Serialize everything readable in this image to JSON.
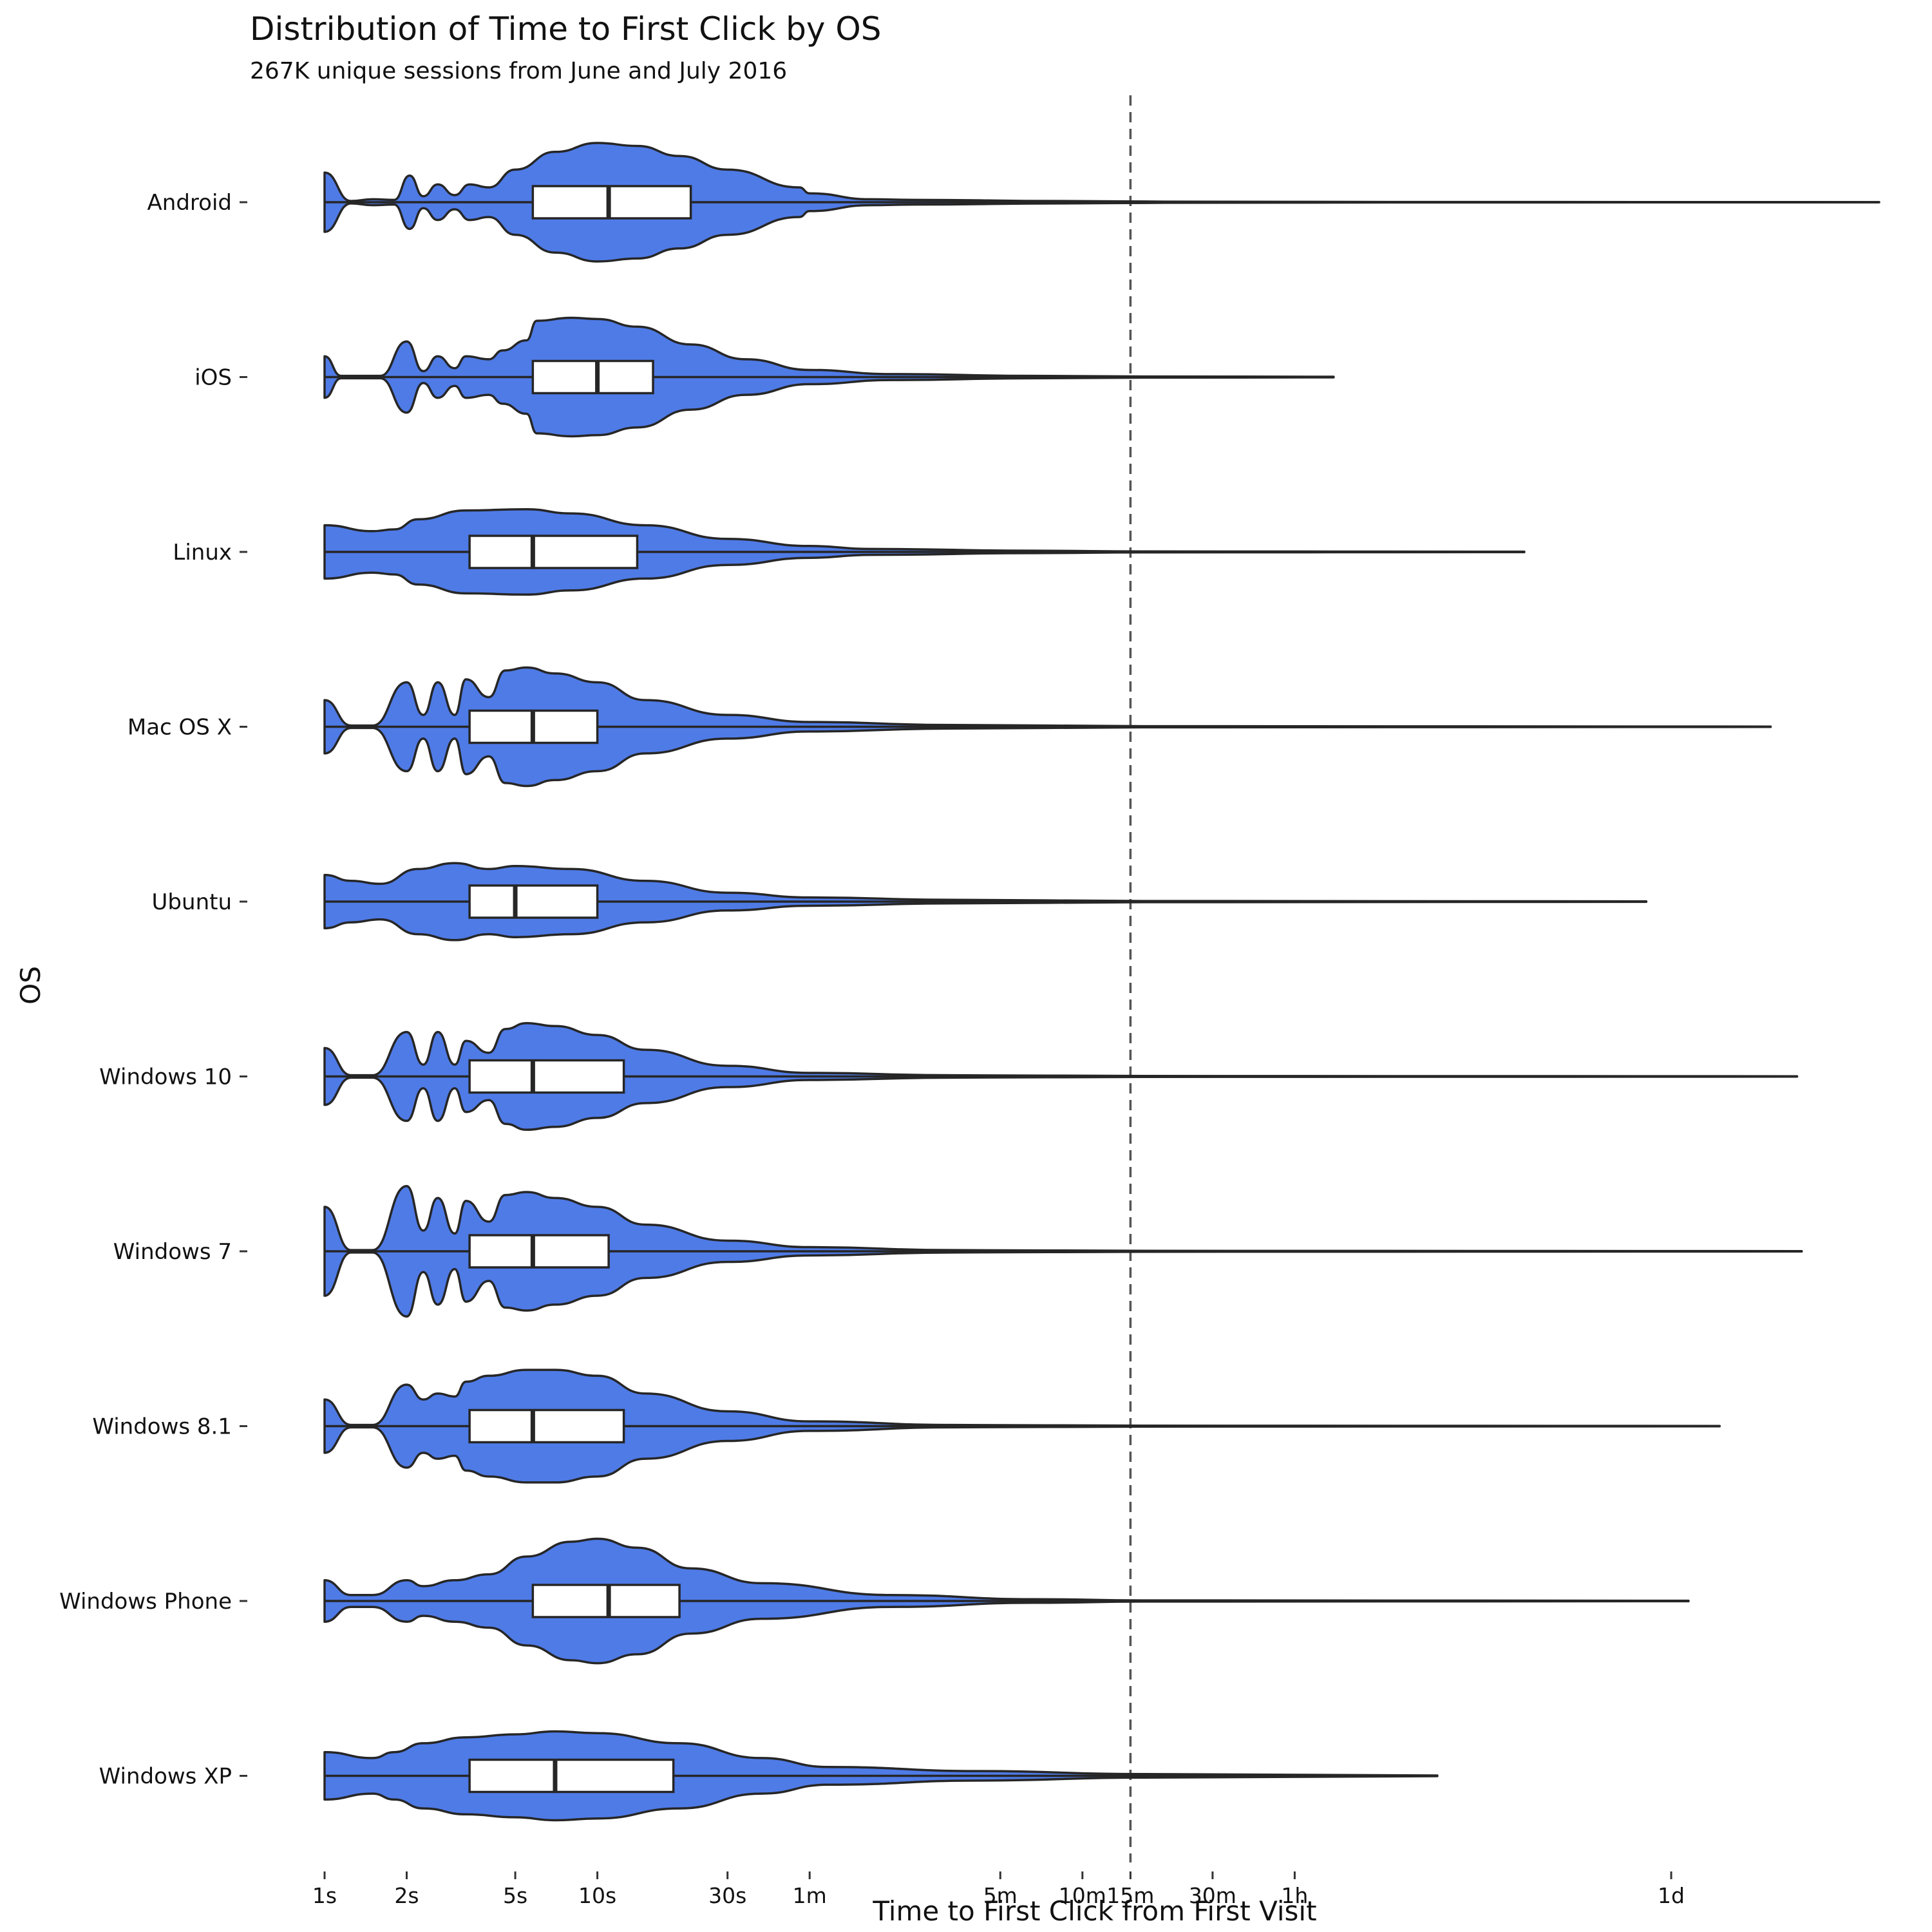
{
  "chart_data": {
    "type": "violin",
    "title": "Distribution of Time to First Click by OS",
    "subtitle": "267K unique sessions from June and July 2016",
    "xlabel": "Time to First Click from First Visit",
    "ylabel": "OS",
    "x_scale": "log",
    "x_unit": "seconds",
    "x_ticks": [
      {
        "label": "1s",
        "value": 1
      },
      {
        "label": "2s",
        "value": 2
      },
      {
        "label": "5s",
        "value": 5
      },
      {
        "label": "10s",
        "value": 10
      },
      {
        "label": "30s",
        "value": 30
      },
      {
        "label": "1m",
        "value": 60
      },
      {
        "label": "5m",
        "value": 300
      },
      {
        "label": "10m",
        "value": 600
      },
      {
        "label": "15m",
        "value": 900
      },
      {
        "label": "30m",
        "value": 1800
      },
      {
        "label": "1h",
        "value": 3600
      },
      {
        "label": "1d",
        "value": 86400
      }
    ],
    "reference_line": {
      "value": 900,
      "style": "dashed"
    },
    "categories": [
      "Android",
      "iOS",
      "Linux",
      "Mac OS X",
      "Ubuntu",
      "Windows 10",
      "Windows 7",
      "Windows 8.1",
      "Windows Phone",
      "Windows XP"
    ],
    "series": [
      {
        "category": "Android",
        "min": 1,
        "whisker_low": 1,
        "q1": 5.8,
        "median": 11,
        "q3": 22,
        "whisker_high": 145,
        "max": 500000,
        "density": [
          [
            1,
            0.5
          ],
          [
            1.25,
            0.02
          ],
          [
            1.5,
            0.05
          ],
          [
            1.8,
            0.04
          ],
          [
            2.05,
            0.45
          ],
          [
            2.3,
            0.1
          ],
          [
            2.6,
            0.3
          ],
          [
            3,
            0.12
          ],
          [
            3.4,
            0.3
          ],
          [
            4,
            0.25
          ],
          [
            5,
            0.55
          ],
          [
            7,
            0.85
          ],
          [
            10,
            1.0
          ],
          [
            14,
            0.95
          ],
          [
            20,
            0.78
          ],
          [
            30,
            0.55
          ],
          [
            55,
            0.25
          ],
          [
            60,
            0.15
          ],
          [
            100,
            0.05
          ],
          [
            145,
            0.04
          ],
          [
            500,
            0.02
          ],
          [
            1200,
            0.01
          ],
          [
            10000,
            0.004
          ],
          [
            500000,
            0.002
          ]
        ]
      },
      {
        "category": "iOS",
        "min": 1,
        "whisker_low": 2.1,
        "q1": 5.8,
        "median": 10,
        "q3": 16,
        "whisker_high": 70,
        "max": 5000,
        "density": [
          [
            1,
            0.35
          ],
          [
            1.15,
            0.02
          ],
          [
            1.6,
            0.02
          ],
          [
            2,
            0.6
          ],
          [
            2.3,
            0.1
          ],
          [
            2.6,
            0.35
          ],
          [
            3,
            0.15
          ],
          [
            3.3,
            0.35
          ],
          [
            4,
            0.3
          ],
          [
            4.5,
            0.45
          ],
          [
            5.5,
            0.62
          ],
          [
            6,
            0.95
          ],
          [
            8,
            1.0
          ],
          [
            10,
            0.98
          ],
          [
            14,
            0.85
          ],
          [
            22,
            0.55
          ],
          [
            35,
            0.3
          ],
          [
            60,
            0.12
          ],
          [
            120,
            0.05
          ],
          [
            400,
            0.02
          ],
          [
            1000,
            0.01
          ],
          [
            5000,
            0.005
          ]
        ]
      },
      {
        "category": "Linux",
        "min": 1,
        "whisker_low": 1,
        "q1": 3.4,
        "median": 5.8,
        "q3": 14,
        "whisker_high": 100,
        "max": 25000,
        "density": [
          [
            1,
            0.45
          ],
          [
            1.5,
            0.35
          ],
          [
            1.8,
            0.38
          ],
          [
            2.2,
            0.55
          ],
          [
            3.3,
            0.7
          ],
          [
            5.5,
            0.72
          ],
          [
            8,
            0.65
          ],
          [
            15,
            0.45
          ],
          [
            30,
            0.22
          ],
          [
            60,
            0.1
          ],
          [
            100,
            0.05
          ],
          [
            400,
            0.02
          ],
          [
            1000,
            0.008
          ],
          [
            25000,
            0.004
          ]
        ]
      },
      {
        "category": "Mac OS X",
        "min": 1,
        "whisker_low": 1,
        "q1": 3.4,
        "median": 5.8,
        "q3": 10,
        "whisker_high": 60,
        "max": 200000,
        "density": [
          [
            1,
            0.45
          ],
          [
            1.25,
            0.02
          ],
          [
            1.5,
            0.02
          ],
          [
            2,
            0.75
          ],
          [
            2.3,
            0.2
          ],
          [
            2.6,
            0.75
          ],
          [
            3,
            0.2
          ],
          [
            3.3,
            0.8
          ],
          [
            4,
            0.5
          ],
          [
            4.6,
            0.95
          ],
          [
            5.5,
            1.0
          ],
          [
            7,
            0.9
          ],
          [
            10,
            0.75
          ],
          [
            15,
            0.45
          ],
          [
            30,
            0.2
          ],
          [
            60,
            0.08
          ],
          [
            200,
            0.03
          ],
          [
            1000,
            0.01
          ],
          [
            200000,
            0.003
          ]
        ]
      },
      {
        "category": "Ubuntu",
        "min": 1,
        "whisker_low": 1,
        "q1": 3.4,
        "median": 5,
        "q3": 10,
        "whisker_high": 60,
        "max": 70000,
        "density": [
          [
            1,
            0.45
          ],
          [
            1.25,
            0.35
          ],
          [
            1.6,
            0.3
          ],
          [
            2.2,
            0.55
          ],
          [
            3,
            0.65
          ],
          [
            4,
            0.55
          ],
          [
            5,
            0.6
          ],
          [
            8,
            0.55
          ],
          [
            15,
            0.35
          ],
          [
            30,
            0.15
          ],
          [
            60,
            0.07
          ],
          [
            200,
            0.03
          ],
          [
            1000,
            0.01
          ],
          [
            70000,
            0.004
          ]
        ]
      },
      {
        "category": "Windows 10",
        "min": 1,
        "whisker_low": 1,
        "q1": 3.4,
        "median": 5.8,
        "q3": 12.5,
        "whisker_high": 110,
        "max": 250000,
        "density": [
          [
            1,
            0.48
          ],
          [
            1.25,
            0.02
          ],
          [
            1.5,
            0.02
          ],
          [
            2,
            0.75
          ],
          [
            2.3,
            0.2
          ],
          [
            2.6,
            0.75
          ],
          [
            3,
            0.2
          ],
          [
            3.3,
            0.6
          ],
          [
            4,
            0.4
          ],
          [
            4.6,
            0.8
          ],
          [
            5.5,
            0.9
          ],
          [
            7,
            0.85
          ],
          [
            10,
            0.7
          ],
          [
            15,
            0.45
          ],
          [
            30,
            0.18
          ],
          [
            60,
            0.06
          ],
          [
            200,
            0.02
          ],
          [
            1000,
            0.008
          ],
          [
            250000,
            0.003
          ]
        ]
      },
      {
        "category": "Windows 7",
        "min": 1,
        "whisker_low": 1,
        "q1": 3.4,
        "median": 5.8,
        "q3": 11,
        "whisker_high": 80,
        "max": 260000,
        "density": [
          [
            1,
            0.75
          ],
          [
            1.25,
            0.02
          ],
          [
            1.5,
            0.02
          ],
          [
            2,
            1.1
          ],
          [
            2.3,
            0.35
          ],
          [
            2.6,
            0.9
          ],
          [
            3,
            0.3
          ],
          [
            3.3,
            0.85
          ],
          [
            4,
            0.5
          ],
          [
            4.6,
            0.95
          ],
          [
            5.5,
            1.0
          ],
          [
            7,
            0.9
          ],
          [
            10,
            0.75
          ],
          [
            15,
            0.45
          ],
          [
            30,
            0.18
          ],
          [
            60,
            0.07
          ],
          [
            200,
            0.02
          ],
          [
            1000,
            0.008
          ],
          [
            260000,
            0.003
          ]
        ]
      },
      {
        "category": "Windows 8.1",
        "min": 1,
        "whisker_low": 1,
        "q1": 3.4,
        "median": 5.8,
        "q3": 12.5,
        "whisker_high": 110,
        "max": 130000,
        "density": [
          [
            1,
            0.45
          ],
          [
            1.25,
            0.02
          ],
          [
            1.5,
            0.02
          ],
          [
            2,
            0.7
          ],
          [
            2.3,
            0.45
          ],
          [
            2.6,
            0.55
          ],
          [
            3,
            0.5
          ],
          [
            3.3,
            0.75
          ],
          [
            4,
            0.85
          ],
          [
            5.5,
            0.95
          ],
          [
            7,
            0.95
          ],
          [
            10,
            0.85
          ],
          [
            15,
            0.55
          ],
          [
            30,
            0.25
          ],
          [
            60,
            0.08
          ],
          [
            200,
            0.02
          ],
          [
            1000,
            0.008
          ],
          [
            130000,
            0.003
          ]
        ]
      },
      {
        "category": "Windows Phone",
        "min": 1,
        "whisker_low": 2.1,
        "q1": 5.8,
        "median": 11,
        "q3": 20,
        "whisker_high": 120,
        "max": 100000,
        "density": [
          [
            1,
            0.35
          ],
          [
            1.25,
            0.1
          ],
          [
            1.5,
            0.1
          ],
          [
            2,
            0.35
          ],
          [
            2.3,
            0.25
          ],
          [
            3,
            0.35
          ],
          [
            4,
            0.45
          ],
          [
            5.5,
            0.75
          ],
          [
            8,
            1.0
          ],
          [
            10,
            1.05
          ],
          [
            14,
            0.9
          ],
          [
            22,
            0.55
          ],
          [
            40,
            0.3
          ],
          [
            120,
            0.1
          ],
          [
            400,
            0.03
          ],
          [
            1000,
            0.01
          ],
          [
            100000,
            0.004
          ]
        ]
      },
      {
        "category": "Windows XP",
        "min": 1,
        "whisker_low": 1,
        "q1": 3.4,
        "median": 7,
        "q3": 19,
        "whisker_high": 250,
        "max": 12000,
        "density": [
          [
            1,
            0.4
          ],
          [
            1.5,
            0.3
          ],
          [
            1.8,
            0.4
          ],
          [
            2.3,
            0.55
          ],
          [
            3.3,
            0.65
          ],
          [
            5,
            0.7
          ],
          [
            7,
            0.75
          ],
          [
            10,
            0.72
          ],
          [
            20,
            0.55
          ],
          [
            40,
            0.3
          ],
          [
            70,
            0.15
          ],
          [
            250,
            0.08
          ],
          [
            1000,
            0.03
          ],
          [
            12000,
            0.005
          ]
        ]
      }
    ],
    "violin_fill": "#4f7be7",
    "outline_color": "#262626",
    "box_fill": "#ffffff",
    "grid": false,
    "legend": "none"
  }
}
